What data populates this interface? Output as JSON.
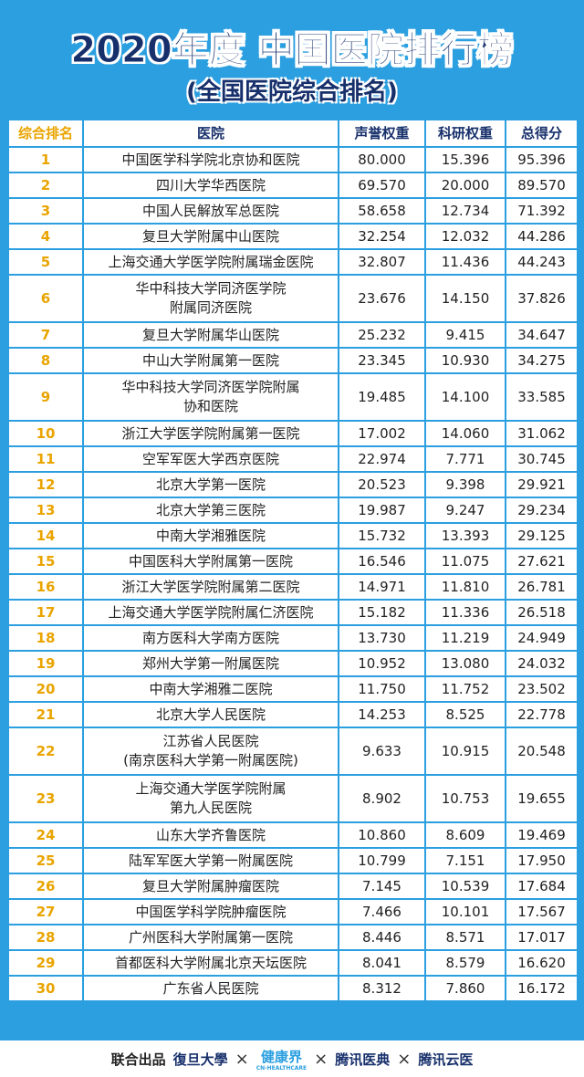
{
  "header": {
    "title": "2020年度 中国医院排行榜",
    "subtitle": "(全国医院综合排名)"
  },
  "table": {
    "columns": [
      "综合排名",
      "医院",
      "声誉权重",
      "科研权重",
      "总得分"
    ],
    "rows": [
      [
        1,
        "中国医学科学院北京协和医院",
        "80.000",
        "15.396",
        "95.396"
      ],
      [
        2,
        "四川大学华西医院",
        "69.570",
        "20.000",
        "89.570"
      ],
      [
        3,
        "中国人民解放军总医院",
        "58.658",
        "12.734",
        "71.392"
      ],
      [
        4,
        "复旦大学附属中山医院",
        "32.254",
        "12.032",
        "44.286"
      ],
      [
        5,
        "上海交通大学医学院附属瑞金医院",
        "32.807",
        "11.436",
        "44.243"
      ],
      [
        6,
        "华中科技大学同济医学院\n附属同济医院",
        "23.676",
        "14.150",
        "37.826"
      ],
      [
        7,
        "复旦大学附属华山医院",
        "25.232",
        "9.415",
        "34.647"
      ],
      [
        8,
        "中山大学附属第一医院",
        "23.345",
        "10.930",
        "34.275"
      ],
      [
        9,
        "华中科技大学同济医学院附属\n协和医院",
        "19.485",
        "14.100",
        "33.585"
      ],
      [
        10,
        "浙江大学医学院附属第一医院",
        "17.002",
        "14.060",
        "31.062"
      ],
      [
        11,
        "空军军医大学西京医院",
        "22.974",
        "7.771",
        "30.745"
      ],
      [
        12,
        "北京大学第一医院",
        "20.523",
        "9.398",
        "29.921"
      ],
      [
        13,
        "北京大学第三医院",
        "19.987",
        "9.247",
        "29.234"
      ],
      [
        14,
        "中南大学湘雅医院",
        "15.732",
        "13.393",
        "29.125"
      ],
      [
        15,
        "中国医科大学附属第一医院",
        "16.546",
        "11.075",
        "27.621"
      ],
      [
        16,
        "浙江大学医学院附属第二医院",
        "14.971",
        "11.810",
        "26.781"
      ],
      [
        17,
        "上海交通大学医学院附属仁济医院",
        "15.182",
        "11.336",
        "26.518"
      ],
      [
        18,
        "南方医科大学南方医院",
        "13.730",
        "11.219",
        "24.949"
      ],
      [
        19,
        "郑州大学第一附属医院",
        "10.952",
        "13.080",
        "24.032"
      ],
      [
        20,
        "中南大学湘雅二医院",
        "11.750",
        "11.752",
        "23.502"
      ],
      [
        21,
        "北京大学人民医院",
        "14.253",
        "8.525",
        "22.778"
      ],
      [
        22,
        "江苏省人民医院\n(南京医科大学第一附属医院)",
        "9.633",
        "10.915",
        "20.548"
      ],
      [
        23,
        "上海交通大学医学院附属\n第九人民医院",
        "8.902",
        "10.753",
        "19.655"
      ],
      [
        24,
        "山东大学齐鲁医院",
        "10.860",
        "8.609",
        "19.469"
      ],
      [
        25,
        "陆军军医大学第一附属医院",
        "10.799",
        "7.151",
        "17.950"
      ],
      [
        26,
        "复旦大学附属肿瘤医院",
        "7.145",
        "10.539",
        "17.684"
      ],
      [
        27,
        "中国医学科学院肿瘤医院",
        "7.466",
        "10.101",
        "17.567"
      ],
      [
        28,
        "广州医科大学附属第一医院",
        "8.446",
        "8.571",
        "17.017"
      ],
      [
        29,
        "首都医科大学附属北京天坛医院",
        "8.041",
        "8.579",
        "16.620"
      ],
      [
        30,
        "广东省人民医院",
        "8.312",
        "7.860",
        "16.172"
      ]
    ]
  },
  "footer": {
    "label": "联合出品",
    "partners": [
      "復旦大學",
      "健康界",
      "CN-HEALTHCARE",
      "腾讯医典",
      "腾讯云医"
    ]
  }
}
